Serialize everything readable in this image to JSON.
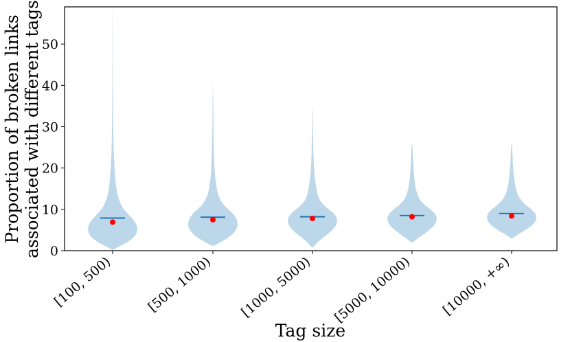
{
  "chart_data": {
    "type": "violin",
    "xlabel": "Tag size",
    "ylabel_lines": [
      "Proportion of broken links",
      "associated with different tags"
    ],
    "ylim": [
      0,
      59
    ],
    "yticks": [
      0,
      10,
      20,
      30,
      40,
      50
    ],
    "categories": [
      "[100, 500)",
      "[500, 1000)",
      "[1000, 5000)",
      "[5000, 10000)",
      "[10000, +∞)"
    ],
    "violin_color": "#bcd6ea",
    "median_color": "#1f77b4",
    "mean_color": "#ff0000",
    "series": [
      {
        "category": "[100, 500)",
        "max": 58.5,
        "median": 7.9,
        "mean": 6.9,
        "profile": [
          [
            0.2,
            0.02
          ],
          [
            1.0,
            0.26
          ],
          [
            2.0,
            0.58
          ],
          [
            3.0,
            0.82
          ],
          [
            4.0,
            0.95
          ],
          [
            5.0,
            1.0
          ],
          [
            6.0,
            0.98
          ],
          [
            7.0,
            0.9
          ],
          [
            8.0,
            0.76
          ],
          [
            9.0,
            0.6
          ],
          [
            10.0,
            0.45
          ],
          [
            11.0,
            0.35
          ],
          [
            12.0,
            0.28
          ],
          [
            13.0,
            0.22
          ],
          [
            14.0,
            0.18
          ],
          [
            16.0,
            0.13
          ],
          [
            18.0,
            0.1
          ],
          [
            20.0,
            0.075
          ],
          [
            23.0,
            0.05
          ],
          [
            26.0,
            0.035
          ],
          [
            30.0,
            0.025
          ],
          [
            35.0,
            0.017
          ],
          [
            40.0,
            0.012
          ],
          [
            46.0,
            0.008
          ],
          [
            52.0,
            0.005
          ],
          [
            58.5,
            0.002
          ]
        ]
      },
      {
        "category": "[500, 1000)",
        "max": 40.5,
        "median": 8.1,
        "mean": 7.5,
        "profile": [
          [
            1.2,
            0.03
          ],
          [
            2.0,
            0.3
          ],
          [
            3.0,
            0.58
          ],
          [
            4.0,
            0.8
          ],
          [
            5.0,
            0.93
          ],
          [
            6.0,
            1.0
          ],
          [
            7.0,
            0.99
          ],
          [
            8.0,
            0.93
          ],
          [
            9.0,
            0.8
          ],
          [
            10.0,
            0.62
          ],
          [
            11.0,
            0.45
          ],
          [
            12.0,
            0.33
          ],
          [
            13.0,
            0.25
          ],
          [
            14.0,
            0.19
          ],
          [
            16.0,
            0.13
          ],
          [
            18.0,
            0.09
          ],
          [
            20.0,
            0.065
          ],
          [
            23.0,
            0.045
          ],
          [
            26.0,
            0.03
          ],
          [
            30.0,
            0.02
          ],
          [
            35.0,
            0.013
          ],
          [
            40.5,
            0.004
          ]
        ]
      },
      {
        "category": "[1000, 5000)",
        "max": 35.0,
        "median": 8.2,
        "mean": 7.8,
        "profile": [
          [
            0.8,
            0.03
          ],
          [
            2.0,
            0.2
          ],
          [
            3.0,
            0.4
          ],
          [
            4.0,
            0.62
          ],
          [
            5.0,
            0.8
          ],
          [
            6.0,
            0.94
          ],
          [
            7.0,
            1.0
          ],
          [
            8.0,
            0.98
          ],
          [
            9.0,
            0.86
          ],
          [
            10.0,
            0.66
          ],
          [
            11.0,
            0.46
          ],
          [
            12.0,
            0.32
          ],
          [
            13.0,
            0.24
          ],
          [
            14.0,
            0.19
          ],
          [
            16.0,
            0.13
          ],
          [
            18.0,
            0.085
          ],
          [
            20.0,
            0.06
          ],
          [
            23.0,
            0.04
          ],
          [
            26.0,
            0.028
          ],
          [
            30.0,
            0.018
          ],
          [
            35.0,
            0.004
          ]
        ]
      },
      {
        "category": "[5000, 10000)",
        "max": 26.0,
        "median": 8.5,
        "mean": 8.2,
        "profile": [
          [
            2.0,
            0.03
          ],
          [
            3.0,
            0.24
          ],
          [
            4.0,
            0.48
          ],
          [
            5.0,
            0.7
          ],
          [
            6.0,
            0.88
          ],
          [
            7.0,
            0.98
          ],
          [
            8.0,
            1.0
          ],
          [
            9.0,
            0.92
          ],
          [
            10.0,
            0.74
          ],
          [
            11.0,
            0.52
          ],
          [
            12.0,
            0.36
          ],
          [
            13.0,
            0.26
          ],
          [
            14.0,
            0.2
          ],
          [
            15.0,
            0.15
          ],
          [
            17.0,
            0.1
          ],
          [
            19.0,
            0.07
          ],
          [
            21.0,
            0.05
          ],
          [
            23.5,
            0.032
          ],
          [
            26.0,
            0.006
          ]
        ]
      },
      {
        "category": "[10000, +∞)",
        "max": 26.0,
        "median": 9.0,
        "mean": 8.4,
        "profile": [
          [
            3.0,
            0.03
          ],
          [
            4.0,
            0.28
          ],
          [
            5.0,
            0.56
          ],
          [
            6.0,
            0.8
          ],
          [
            7.0,
            0.95
          ],
          [
            8.0,
            1.0
          ],
          [
            9.0,
            0.96
          ],
          [
            10.0,
            0.8
          ],
          [
            11.0,
            0.58
          ],
          [
            12.0,
            0.41
          ],
          [
            13.0,
            0.3
          ],
          [
            14.0,
            0.22
          ],
          [
            15.0,
            0.17
          ],
          [
            17.0,
            0.11
          ],
          [
            19.0,
            0.075
          ],
          [
            21.0,
            0.05
          ],
          [
            23.5,
            0.032
          ],
          [
            26.0,
            0.006
          ]
        ]
      }
    ]
  }
}
